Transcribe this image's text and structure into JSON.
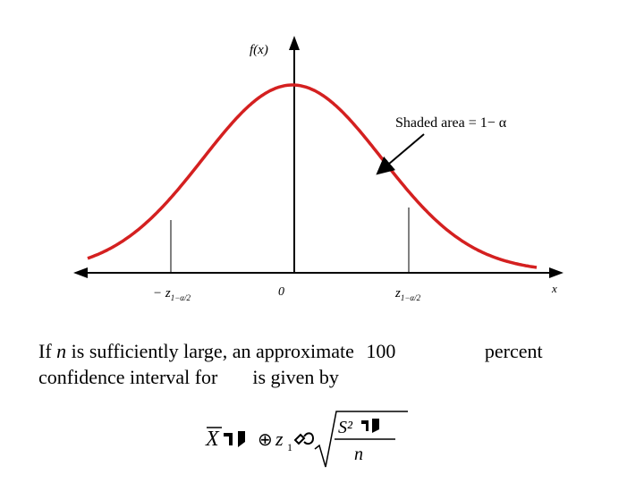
{
  "diagram": {
    "y_axis_label": "f(x)",
    "x_axis_label": "x",
    "annotation": "Shaded area = 1− α",
    "tick_left": "− z",
    "tick_left_sub": "1−α/2",
    "tick_center": "0",
    "tick_right": "z",
    "tick_right_sub": "1−α/2",
    "curve_color": "#d42020",
    "axis_color": "#000000"
  },
  "caption": {
    "line1_before": "If",
    "line1_var": "n",
    "line1_after": "is sufficiently large, an approximate",
    "line1_percent_prefix": "100",
    "line1_end": "percent",
    "line2_before": "confidence interval for",
    "line2_after": "is given by"
  },
  "formula": {
    "xbar": "X",
    "z": "z",
    "z_sub": "1",
    "numerator": "S²",
    "denominator": "n"
  }
}
